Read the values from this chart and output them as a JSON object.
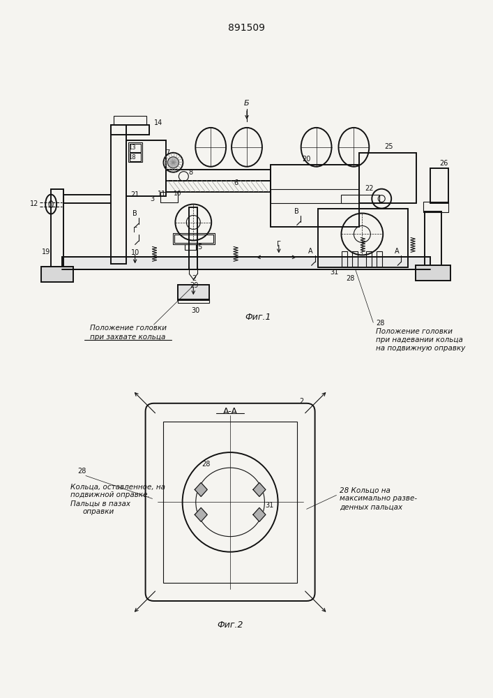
{
  "title": "891509",
  "bg_color": "#f5f4f0",
  "line_color": "#111111",
  "fig1_label": "Фиг.1",
  "fig2_label": "Фиг.2",
  "section_label": "A-A",
  "ann1_line1": "Положение головки",
  "ann1_line2": "при захвате кольца",
  "ann2_line1": "Положение головки",
  "ann2_line2": "при надевании кольца",
  "ann2_line3": "на подвижную оправку",
  "ann3_num": "28",
  "ann3_line1": "Кольца, оставленное, на",
  "ann3_line2": "подвижной оправке.",
  "ann3_line3": "Пальцы в пазах",
  "ann3_line4": "оправки",
  "ann4_line1": "28 Кольцо на",
  "ann4_line2": "максимально разве-",
  "ann4_line3": "денных пальцах"
}
